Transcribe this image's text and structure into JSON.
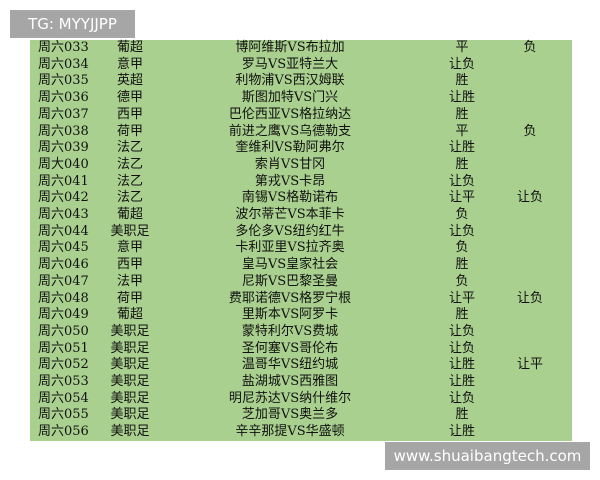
{
  "watermark_top": "TG: MYYJJPP",
  "watermark_bottom": "www.shuaibangtech.com",
  "table": {
    "rows": [
      [
        "周六033",
        "葡超",
        "博阿维斯VS布拉加",
        "平",
        "负"
      ],
      [
        "周六034",
        "意甲",
        "罗马VS亚特兰大",
        "让负"
      ],
      [
        "周六035",
        "英超",
        "利物浦VS西汉姆联",
        "胜"
      ],
      [
        "周六036",
        "德甲",
        "斯图加特VS门兴",
        "让胜"
      ],
      [
        "周六037",
        "西甲",
        "巴伦西亚VS格拉纳达",
        "胜"
      ],
      [
        "周六038",
        "荷甲",
        "前进之鹰VS乌德勒支",
        "平",
        "负"
      ],
      [
        "周六039",
        "法乙",
        "奎维利VS勒阿弗尔",
        "让胜"
      ],
      [
        "周大040",
        "法乙",
        "索肖VS甘冈",
        "胜"
      ],
      [
        "周六041",
        "法乙",
        "第戎VS卡昂",
        "让负"
      ],
      [
        "周六042",
        "法乙",
        "南锡VS格勒诺布",
        "让平",
        "让负"
      ],
      [
        "周六043",
        "葡超",
        "波尔蒂芒VS本菲卡",
        "负"
      ],
      [
        "周六044",
        "美职足",
        "多伦多VS纽约红牛",
        "让负"
      ],
      [
        "周六045",
        "意甲",
        "卡利亚里VS拉齐奥",
        "负"
      ],
      [
        "周六046",
        "西甲",
        "皇马VS皇家社会",
        "胜"
      ],
      [
        "周六047",
        "法甲",
        "尼斯VS巴黎圣曼",
        "负"
      ],
      [
        "周六048",
        "荷甲",
        "费耶诺德VS格罗宁根",
        "让平",
        "让负"
      ],
      [
        "周六049",
        "葡超",
        "里斯本VS阿罗卡",
        "胜"
      ],
      [
        "周六050",
        "美职足",
        "蒙特利尔VS费城",
        "让负"
      ],
      [
        "周六051",
        "美职足",
        "圣何塞VS哥伦布",
        "让负"
      ],
      [
        "周六052",
        "美职足",
        "温哥华VS纽约城",
        "让胜",
        "让平"
      ],
      [
        "周六053",
        "美职足",
        "盐湖城VS西雅图",
        "让胜"
      ],
      [
        "周六054",
        "美职足",
        "明尼苏达VS纳什维尔",
        "让负"
      ],
      [
        "周六055",
        "美职足",
        "芝加哥VS奥兰多",
        "胜"
      ],
      [
        "周六056",
        "美职足",
        "辛辛那提VS华盛顿",
        "让胜"
      ]
    ]
  }
}
